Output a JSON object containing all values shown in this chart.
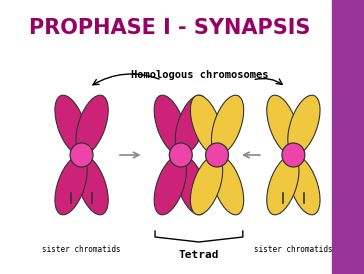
{
  "title": "PROPHASE I - SYNAPSIS",
  "title_color": "#990066",
  "title_fontsize": 15,
  "bg_color": "#FFFFFF",
  "right_panel_color": "#993399",
  "label_homologous": "Homologous chromosomes",
  "label_sister1": "sister chromatids",
  "label_sister2": "sister chromatids",
  "label_tetrad": "Tetrad",
  "pink_color": "#CC2277",
  "yellow_color": "#F0C840",
  "centromere_color": "#EE44AA",
  "chromatid_outline": "#333333",
  "arrow_color": "#888888",
  "text_color": "#000000"
}
